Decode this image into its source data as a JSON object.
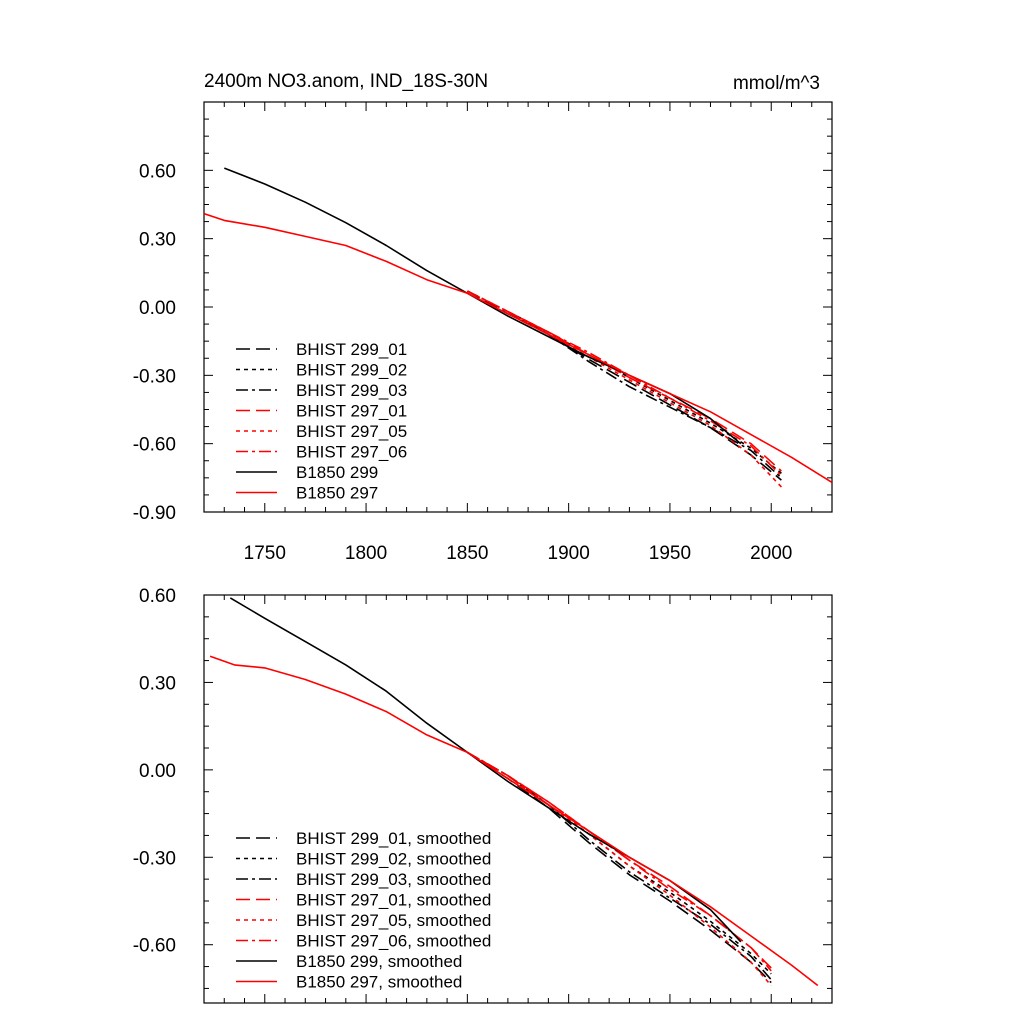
{
  "chart_data": [
    {
      "type": "line",
      "title": "2400m NO3.anom, IND_18S-30N",
      "units": "mmol/m^3",
      "xlabel": "",
      "ylabel": "",
      "xlim": [
        1720,
        2030
      ],
      "ylim": [
        -0.9,
        0.9
      ],
      "xticks": [
        1750,
        1800,
        1850,
        1900,
        1950,
        2000
      ],
      "xtick_labels": [
        "1750",
        "1800",
        "1850",
        "1900",
        "1950",
        "2000"
      ],
      "yticks": [
        0.6,
        0.3,
        0.0,
        -0.3,
        -0.6,
        -0.9
      ],
      "ytick_labels": [
        "0.60",
        "0.30",
        "0.00",
        "-0.30",
        "-0.60",
        "-0.90"
      ],
      "legend_position": "bottom-left",
      "series": [
        {
          "name": "BHIST 299_01",
          "color": "#000000",
          "style": "dash",
          "x": [
            1850,
            1870,
            1890,
            1910,
            1930,
            1950,
            1970,
            1990,
            2005
          ],
          "y": [
            0.07,
            -0.03,
            -0.12,
            -0.23,
            -0.33,
            -0.43,
            -0.53,
            -0.65,
            -0.76
          ]
        },
        {
          "name": "BHIST 299_02",
          "color": "#000000",
          "style": "dot",
          "x": [
            1850,
            1870,
            1890,
            1910,
            1930,
            1950,
            1970,
            1990,
            2005
          ],
          "y": [
            0.07,
            -0.02,
            -0.11,
            -0.21,
            -0.31,
            -0.41,
            -0.51,
            -0.62,
            -0.73
          ]
        },
        {
          "name": "BHIST 299_03",
          "color": "#000000",
          "style": "dashdot",
          "x": [
            1850,
            1870,
            1890,
            1910,
            1930,
            1950,
            1970,
            1990,
            2005
          ],
          "y": [
            0.07,
            -0.02,
            -0.12,
            -0.24,
            -0.35,
            -0.44,
            -0.53,
            -0.63,
            -0.75
          ]
        },
        {
          "name": "BHIST 297_01",
          "color": "#ff0000",
          "style": "dash",
          "x": [
            1850,
            1870,
            1890,
            1910,
            1930,
            1950,
            1970,
            1990,
            2005
          ],
          "y": [
            0.07,
            -0.02,
            -0.11,
            -0.21,
            -0.31,
            -0.4,
            -0.49,
            -0.6,
            -0.72
          ]
        },
        {
          "name": "BHIST 297_05",
          "color": "#ff0000",
          "style": "dot",
          "x": [
            1850,
            1870,
            1890,
            1910,
            1930,
            1950,
            1970,
            1990,
            2005
          ],
          "y": [
            0.07,
            -0.02,
            -0.12,
            -0.22,
            -0.32,
            -0.42,
            -0.52,
            -0.65,
            -0.79
          ]
        },
        {
          "name": "BHIST 297_06",
          "color": "#ff0000",
          "style": "dashdot",
          "x": [
            1850,
            1870,
            1890,
            1910,
            1930,
            1950,
            1970,
            1990,
            2005
          ],
          "y": [
            0.07,
            -0.02,
            -0.11,
            -0.2,
            -0.3,
            -0.4,
            -0.5,
            -0.61,
            -0.74
          ]
        },
        {
          "name": "B1850 299",
          "color": "#000000",
          "style": "solid",
          "x": [
            1730,
            1750,
            1770,
            1790,
            1810,
            1830,
            1850,
            1870,
            1890,
            1910,
            1930,
            1950,
            1970,
            1985
          ],
          "y": [
            0.61,
            0.54,
            0.46,
            0.37,
            0.27,
            0.16,
            0.06,
            -0.04,
            -0.13,
            -0.22,
            -0.3,
            -0.38,
            -0.49,
            -0.6
          ]
        },
        {
          "name": "B1850 297",
          "color": "#ff0000",
          "style": "solid",
          "x": [
            1720,
            1730,
            1750,
            1770,
            1790,
            1810,
            1830,
            1850,
            1870,
            1890,
            1910,
            1930,
            1950,
            1970,
            1990,
            2010,
            2030
          ],
          "y": [
            0.41,
            0.38,
            0.35,
            0.31,
            0.27,
            0.2,
            0.12,
            0.06,
            -0.03,
            -0.12,
            -0.21,
            -0.3,
            -0.38,
            -0.46,
            -0.56,
            -0.66,
            -0.77
          ]
        }
      ]
    },
    {
      "type": "line",
      "title": "",
      "xlabel": "",
      "ylabel": "",
      "xlim": [
        1720,
        2030
      ],
      "ylim": [
        -0.8,
        0.6
      ],
      "xticks": [
        1750,
        1800,
        1850,
        1900,
        1950,
        2000
      ],
      "xtick_labels": [],
      "yticks": [
        0.6,
        0.3,
        0.0,
        -0.3,
        -0.6
      ],
      "ytick_labels": [
        "0.60",
        "0.30",
        "0.00",
        "-0.30",
        "-0.60"
      ],
      "legend_position": "bottom-left",
      "series": [
        {
          "name": "BHIST 299_01, smoothed",
          "color": "#000000",
          "style": "dash",
          "x": [
            1850,
            1870,
            1890,
            1910,
            1930,
            1950,
            1970,
            1990,
            2000
          ],
          "y": [
            0.06,
            -0.03,
            -0.13,
            -0.25,
            -0.36,
            -0.45,
            -0.55,
            -0.66,
            -0.73
          ]
        },
        {
          "name": "BHIST 299_02, smoothed",
          "color": "#000000",
          "style": "dot",
          "x": [
            1850,
            1870,
            1890,
            1910,
            1930,
            1950,
            1970,
            1990,
            2000
          ],
          "y": [
            0.06,
            -0.02,
            -0.12,
            -0.22,
            -0.33,
            -0.42,
            -0.52,
            -0.63,
            -0.7
          ]
        },
        {
          "name": "BHIST 299_03, smoothed",
          "color": "#000000",
          "style": "dashdot",
          "x": [
            1850,
            1870,
            1890,
            1910,
            1930,
            1950,
            1970,
            1990,
            2000
          ],
          "y": [
            0.06,
            -0.02,
            -0.12,
            -0.24,
            -0.35,
            -0.44,
            -0.53,
            -0.64,
            -0.72
          ]
        },
        {
          "name": "BHIST 297_01, smoothed",
          "color": "#ff0000",
          "style": "dash",
          "x": [
            1850,
            1870,
            1890,
            1910,
            1930,
            1950,
            1970,
            1990,
            2000
          ],
          "y": [
            0.06,
            -0.02,
            -0.11,
            -0.21,
            -0.31,
            -0.4,
            -0.5,
            -0.61,
            -0.68
          ]
        },
        {
          "name": "BHIST 297_05, smoothed",
          "color": "#ff0000",
          "style": "dot",
          "x": [
            1850,
            1870,
            1890,
            1910,
            1930,
            1950,
            1970,
            1990,
            2000
          ],
          "y": [
            0.06,
            -0.02,
            -0.12,
            -0.22,
            -0.33,
            -0.43,
            -0.54,
            -0.66,
            -0.74
          ]
        },
        {
          "name": "BHIST 297_06, smoothed",
          "color": "#ff0000",
          "style": "dashdot",
          "x": [
            1850,
            1870,
            1890,
            1910,
            1930,
            1950,
            1970,
            1990,
            2000
          ],
          "y": [
            0.06,
            -0.02,
            -0.11,
            -0.21,
            -0.31,
            -0.41,
            -0.5,
            -0.61,
            -0.69
          ]
        },
        {
          "name": "B1850 299, smoothed",
          "color": "#000000",
          "style": "solid",
          "x": [
            1733,
            1750,
            1770,
            1790,
            1810,
            1830,
            1850,
            1870,
            1890,
            1910,
            1930,
            1950,
            1970,
            1985
          ],
          "y": [
            0.59,
            0.52,
            0.44,
            0.36,
            0.27,
            0.16,
            0.06,
            -0.04,
            -0.13,
            -0.22,
            -0.3,
            -0.38,
            -0.48,
            -0.59
          ]
        },
        {
          "name": "B1850 297, smoothed",
          "color": "#ff0000",
          "style": "solid",
          "x": [
            1723,
            1735,
            1750,
            1770,
            1790,
            1810,
            1830,
            1850,
            1870,
            1890,
            1910,
            1930,
            1950,
            1970,
            1990,
            2010,
            2023
          ],
          "y": [
            0.39,
            0.36,
            0.35,
            0.31,
            0.26,
            0.2,
            0.12,
            0.06,
            -0.03,
            -0.12,
            -0.21,
            -0.3,
            -0.38,
            -0.47,
            -0.57,
            -0.67,
            -0.74
          ]
        }
      ]
    }
  ]
}
